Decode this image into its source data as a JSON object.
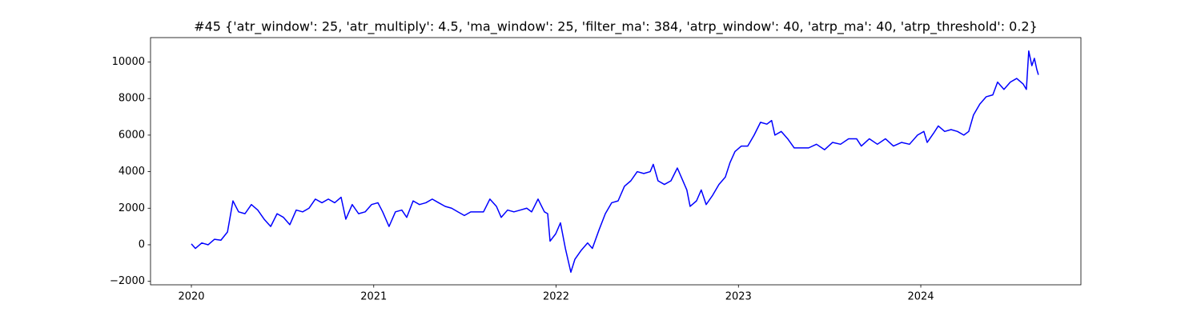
{
  "chart_data": {
    "type": "line",
    "title": "#45 {'atr_window': 25, 'atr_multiply': 4.5, 'ma_window': 25, 'filter_ma': 384, 'atrp_window': 40, 'atrp_ma': 40, 'atrp_threshold': 0.2}",
    "x": [
      2020.0,
      2020.022,
      2020.057,
      2020.092,
      2020.127,
      2020.162,
      2020.198,
      2020.228,
      2020.259,
      2020.294,
      2020.329,
      2020.364,
      2020.399,
      2020.435,
      2020.47,
      2020.505,
      2020.54,
      2020.575,
      2020.61,
      2020.645,
      2020.68,
      2020.716,
      2020.751,
      2020.786,
      2020.821,
      2020.847,
      2020.882,
      2020.917,
      2020.953,
      2020.988,
      2021.023,
      2021.049,
      2021.084,
      2021.119,
      2021.154,
      2021.181,
      2021.216,
      2021.251,
      2021.286,
      2021.321,
      2021.356,
      2021.392,
      2021.427,
      2021.462,
      2021.497,
      2021.532,
      2021.567,
      2021.602,
      2021.637,
      2021.673,
      2021.699,
      2021.734,
      2021.769,
      2021.804,
      2021.839,
      2021.866,
      2021.901,
      2021.936,
      2021.954,
      2021.967,
      2021.998,
      2022.024,
      2022.051,
      2022.081,
      2022.103,
      2022.138,
      2022.173,
      2022.199,
      2022.235,
      2022.27,
      2022.305,
      2022.34,
      2022.375,
      2022.41,
      2022.445,
      2022.481,
      2022.516,
      2022.533,
      2022.559,
      2022.594,
      2022.63,
      2022.665,
      2022.691,
      2022.717,
      2022.735,
      2022.77,
      2022.796,
      2022.823,
      2022.858,
      2022.893,
      2022.928,
      2022.954,
      2022.981,
      2023.016,
      2023.051,
      2023.086,
      2023.121,
      2023.156,
      2023.182,
      2023.2,
      2023.235,
      2023.27,
      2023.306,
      2023.341,
      2023.385,
      2023.428,
      2023.472,
      2023.516,
      2023.56,
      2023.604,
      2023.648,
      2023.674,
      2023.718,
      2023.762,
      2023.806,
      2023.85,
      2023.894,
      2023.938,
      2023.982,
      2024.017,
      2024.035,
      2024.07,
      2024.096,
      2024.131,
      2024.166,
      2024.201,
      2024.236,
      2024.263,
      2024.289,
      2024.324,
      2024.359,
      2024.395,
      2024.421,
      2024.456,
      2024.491,
      2024.526,
      2024.561,
      2024.579,
      2024.592,
      2024.609,
      2024.623,
      2024.636,
      2024.645
    ],
    "series": [
      {
        "color": "#0000ff",
        "values": [
          50,
          -200,
          100,
          0,
          300,
          250,
          700,
          2400,
          1800,
          1700,
          2200,
          1900,
          1400,
          1000,
          1700,
          1500,
          1100,
          1900,
          1800,
          2000,
          2500,
          2300,
          2500,
          2300,
          2600,
          1400,
          2200,
          1700,
          1800,
          2200,
          2300,
          1800,
          1000,
          1800,
          1900,
          1500,
          2400,
          2200,
          2300,
          2500,
          2300,
          2100,
          2000,
          1800,
          1600,
          1800,
          1800,
          1800,
          2500,
          2100,
          1500,
          1900,
          1800,
          1900,
          2000,
          1800,
          2500,
          1800,
          1700,
          200,
          600,
          1200,
          -200,
          -1500,
          -800,
          -300,
          100,
          -200,
          800,
          1700,
          2300,
          2400,
          3200,
          3500,
          4000,
          3900,
          4000,
          4400,
          3500,
          3300,
          3500,
          4200,
          3600,
          3000,
          2100,
          2400,
          3000,
          2200,
          2700,
          3300,
          3700,
          4500,
          5100,
          5400,
          5400,
          6000,
          6700,
          6600,
          6800,
          6000,
          6200,
          5800,
          5300,
          5300,
          5300,
          5500,
          5200,
          5600,
          5500,
          5800,
          5800,
          5400,
          5800,
          5500,
          5800,
          5400,
          5600,
          5500,
          6000,
          6200,
          5600,
          6100,
          6500,
          6200,
          6300,
          6200,
          6000,
          6200,
          7100,
          7700,
          8100,
          8200,
          8900,
          8500,
          8900,
          9100,
          8800,
          8500,
          10600,
          9800,
          10200,
          9600,
          9300
        ]
      }
    ],
    "xlim": [
      2019.776,
      2024.878
    ],
    "xticks": [
      2020,
      2021,
      2022,
      2023,
      2024
    ],
    "ylim": [
      -2190,
      11335
    ],
    "yticks": [
      {
        "value": -2000,
        "label": "−2000"
      },
      0,
      2000,
      4000,
      6000,
      8000,
      10000
    ],
    "grid": false
  }
}
